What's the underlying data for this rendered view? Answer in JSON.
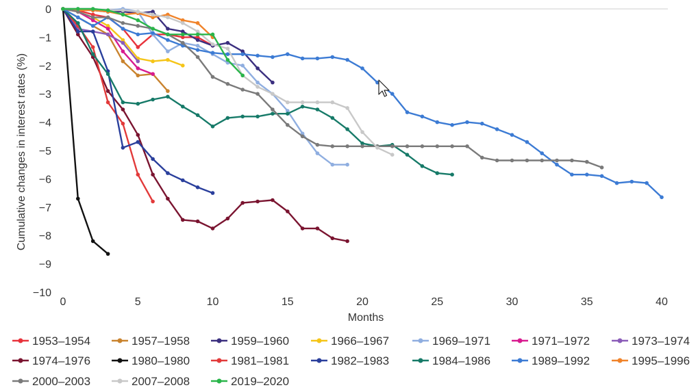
{
  "chart_data": {
    "type": "line",
    "title": "",
    "xlabel": "Months",
    "ylabel": "Cumulative changes in interest rates (%)",
    "xlim": [
      0,
      40
    ],
    "ylim": [
      -10,
      0
    ],
    "xticks": [
      0,
      5,
      10,
      15,
      20,
      25,
      30,
      35,
      40
    ],
    "yticks": [
      0,
      -1,
      -2,
      -3,
      -4,
      -5,
      -6,
      -7,
      -8,
      -9,
      -10
    ],
    "xtick_labels": [
      "0",
      "5",
      "10",
      "15",
      "20",
      "25",
      "30",
      "35",
      "40"
    ],
    "ytick_labels": [
      "0",
      "−1",
      "−2",
      "−3",
      "−4",
      "−5",
      "−6",
      "−7",
      "−8",
      "−9",
      "−10"
    ],
    "grid": false,
    "legend_position": "bottom",
    "series": [
      {
        "name": "1953–1954",
        "color": "#e8333c",
        "x": [
          0,
          1,
          2,
          3,
          4,
          5,
          6,
          7,
          8,
          9,
          10
        ],
        "y": [
          0,
          -0.05,
          -0.2,
          -0.3,
          -0.7,
          -1.35,
          -0.9,
          -0.9,
          -1.0,
          -1.0,
          -1.3
        ]
      },
      {
        "name": "1957–1958",
        "color": "#c9832e",
        "x": [
          0,
          1,
          2,
          3,
          4,
          5,
          6,
          7
        ],
        "y": [
          0,
          -0.3,
          -0.6,
          -0.9,
          -1.85,
          -2.35,
          -2.3,
          -2.9
        ]
      },
      {
        "name": "1959–1960",
        "color": "#3b2f7f",
        "x": [
          0,
          1,
          2,
          3,
          4,
          5,
          6,
          7,
          8,
          9,
          10,
          11,
          12,
          13,
          14
        ],
        "y": [
          0,
          0,
          -0.05,
          -0.1,
          -0.1,
          -0.15,
          -0.1,
          -0.7,
          -0.8,
          -1.1,
          -1.3,
          -1.2,
          -1.5,
          -2.1,
          -2.6
        ]
      },
      {
        "name": "1966–1967",
        "color": "#f5c518",
        "x": [
          0,
          1,
          2,
          3,
          4,
          5,
          6,
          7,
          8
        ],
        "y": [
          0,
          -0.1,
          -0.3,
          -0.6,
          -1.1,
          -1.75,
          -1.85,
          -1.8,
          -2.0
        ]
      },
      {
        "name": "1969–1971",
        "color": "#8faee0",
        "x": [
          0,
          1,
          2,
          3,
          4,
          5,
          6,
          7,
          8,
          9,
          10,
          11,
          12,
          13,
          14,
          15,
          16,
          17,
          18,
          19
        ],
        "y": [
          0,
          0,
          0,
          -0.05,
          0,
          -0.1,
          -0.9,
          -1.5,
          -1.2,
          -1.3,
          -1.6,
          -1.9,
          -2.0,
          -2.6,
          -3.0,
          -3.6,
          -4.4,
          -5.1,
          -5.5,
          -5.5
        ]
      },
      {
        "name": "1971–1972",
        "color": "#d81b8f",
        "x": [
          0,
          1,
          2,
          3,
          4,
          5,
          6
        ],
        "y": [
          0,
          -0.1,
          -0.4,
          -0.7,
          -1.5,
          -2.1,
          -2.3
        ]
      },
      {
        "name": "1973–1974",
        "color": "#8a5cb8",
        "x": [
          0,
          1,
          2,
          3,
          4,
          5
        ],
        "y": [
          0,
          -0.7,
          -0.8,
          -0.9,
          -1.2,
          -1.85
        ]
      },
      {
        "name": "1974–1976",
        "color": "#7a1430",
        "x": [
          0,
          1,
          2,
          3,
          4,
          5,
          6,
          7,
          8,
          9,
          10,
          11,
          12,
          13,
          14,
          15,
          16,
          17,
          18,
          19
        ],
        "y": [
          0,
          -0.9,
          -1.7,
          -2.9,
          -3.55,
          -4.45,
          -5.85,
          -6.7,
          -7.45,
          -7.5,
          -7.75,
          -7.4,
          -6.85,
          -6.8,
          -6.75,
          -7.15,
          -7.75,
          -7.75,
          -8.1,
          -8.2
        ]
      },
      {
        "name": "1980–1980",
        "color": "#111111",
        "x": [
          0,
          1,
          2,
          3
        ],
        "y": [
          0,
          -6.7,
          -8.2,
          -8.65
        ]
      },
      {
        "name": "1981–1981",
        "color": "#e23a3a",
        "x": [
          0,
          1,
          2,
          3,
          4,
          5,
          6
        ],
        "y": [
          0,
          -0.6,
          -1.35,
          -3.3,
          -4.05,
          -5.85,
          -6.8
        ]
      },
      {
        "name": "1982–1983",
        "color": "#2a3f9c",
        "x": [
          0,
          1,
          2,
          3,
          4,
          5,
          6,
          7,
          8,
          9,
          10
        ],
        "y": [
          0,
          -0.8,
          -0.8,
          -2.2,
          -4.9,
          -4.7,
          -5.3,
          -5.8,
          -6.05,
          -6.3,
          -6.5
        ]
      },
      {
        "name": "1984–1986",
        "color": "#167a68",
        "x": [
          0,
          1,
          2,
          3,
          4,
          5,
          6,
          7,
          8,
          9,
          10,
          11,
          12,
          13,
          14,
          15,
          16,
          17,
          18,
          19,
          20,
          21,
          22,
          23,
          24,
          25,
          26
        ],
        "y": [
          0,
          -0.5,
          -1.6,
          -2.3,
          -3.3,
          -3.35,
          -3.2,
          -3.1,
          -3.45,
          -3.75,
          -4.15,
          -3.85,
          -3.8,
          -3.8,
          -3.7,
          -3.7,
          -3.45,
          -3.55,
          -3.85,
          -4.25,
          -4.75,
          -4.85,
          -4.8,
          -5.15,
          -5.55,
          -5.8,
          -5.85
        ]
      },
      {
        "name": "1989–1992",
        "color": "#3c7bd4",
        "x": [
          0,
          1,
          2,
          3,
          4,
          5,
          6,
          7,
          8,
          9,
          10,
          11,
          12,
          13,
          14,
          15,
          16,
          17,
          18,
          19,
          20,
          21,
          22,
          23,
          24,
          25,
          26,
          27,
          28,
          29,
          30,
          31,
          32,
          33,
          34,
          35,
          36,
          37,
          38,
          39,
          40
        ],
        "y": [
          0,
          -0.3,
          -0.6,
          -0.3,
          -0.7,
          -0.9,
          -0.85,
          -1.1,
          -1.3,
          -1.45,
          -1.55,
          -1.6,
          -1.6,
          -1.65,
          -1.7,
          -1.6,
          -1.75,
          -1.75,
          -1.7,
          -1.8,
          -2.1,
          -2.6,
          -3.0,
          -3.65,
          -3.8,
          -4.0,
          -4.1,
          -4.0,
          -4.05,
          -4.25,
          -4.45,
          -4.7,
          -5.1,
          -5.5,
          -5.85,
          -5.85,
          -5.9,
          -6.15,
          -6.1,
          -6.15,
          -6.65
        ]
      },
      {
        "name": "1995–1996",
        "color": "#f0832a",
        "x": [
          0,
          1,
          2,
          3,
          4,
          5,
          6,
          7,
          8,
          9,
          10
        ],
        "y": [
          0,
          -0.05,
          -0.05,
          -0.1,
          -0.2,
          -0.15,
          -0.3,
          -0.2,
          -0.4,
          -0.5,
          -1.0
        ]
      },
      {
        "name": "2000–2003",
        "color": "#7a7a7a",
        "x": [
          0,
          1,
          2,
          3,
          4,
          5,
          6,
          7,
          8,
          9,
          10,
          11,
          12,
          13,
          14,
          15,
          16,
          17,
          18,
          19,
          20,
          21,
          22,
          23,
          24,
          25,
          26,
          27,
          28,
          29,
          30,
          31,
          32,
          33,
          34,
          35,
          36
        ],
        "y": [
          0,
          -0.1,
          -0.3,
          -0.3,
          -0.5,
          -0.6,
          -0.7,
          -0.9,
          -1.2,
          -1.7,
          -2.4,
          -2.65,
          -2.85,
          -3.0,
          -3.55,
          -4.1,
          -4.5,
          -4.8,
          -4.85,
          -4.85,
          -4.85,
          -4.85,
          -4.85,
          -4.85,
          -4.85,
          -4.85,
          -4.85,
          -4.85,
          -5.25,
          -5.35,
          -5.35,
          -5.35,
          -5.35,
          -5.35,
          -5.35,
          -5.4,
          -5.6
        ]
      },
      {
        "name": "2007–2008",
        "color": "#c8c8c8",
        "x": [
          0,
          1,
          2,
          3,
          4,
          5,
          6,
          7,
          8,
          9,
          10,
          11,
          12,
          13,
          14,
          15,
          16,
          17,
          18,
          19,
          20,
          21,
          22
        ],
        "y": [
          0,
          0,
          0,
          -0.05,
          -0.05,
          -0.1,
          -0.2,
          -0.3,
          -0.5,
          -0.8,
          -1.25,
          -1.4,
          -2.35,
          -2.75,
          -3.0,
          -3.3,
          -3.3,
          -3.3,
          -3.3,
          -3.5,
          -4.35,
          -4.9,
          -5.15
        ]
      },
      {
        "name": "2019–2020",
        "color": "#2ab54a",
        "x": [
          0,
          1,
          2,
          3,
          4,
          5,
          6,
          7,
          8,
          9,
          10,
          11,
          12
        ],
        "y": [
          0,
          0,
          0,
          -0.05,
          -0.2,
          -0.4,
          -0.7,
          -0.9,
          -0.9,
          -0.9,
          -0.9,
          -1.8,
          -2.35
        ]
      }
    ]
  }
}
